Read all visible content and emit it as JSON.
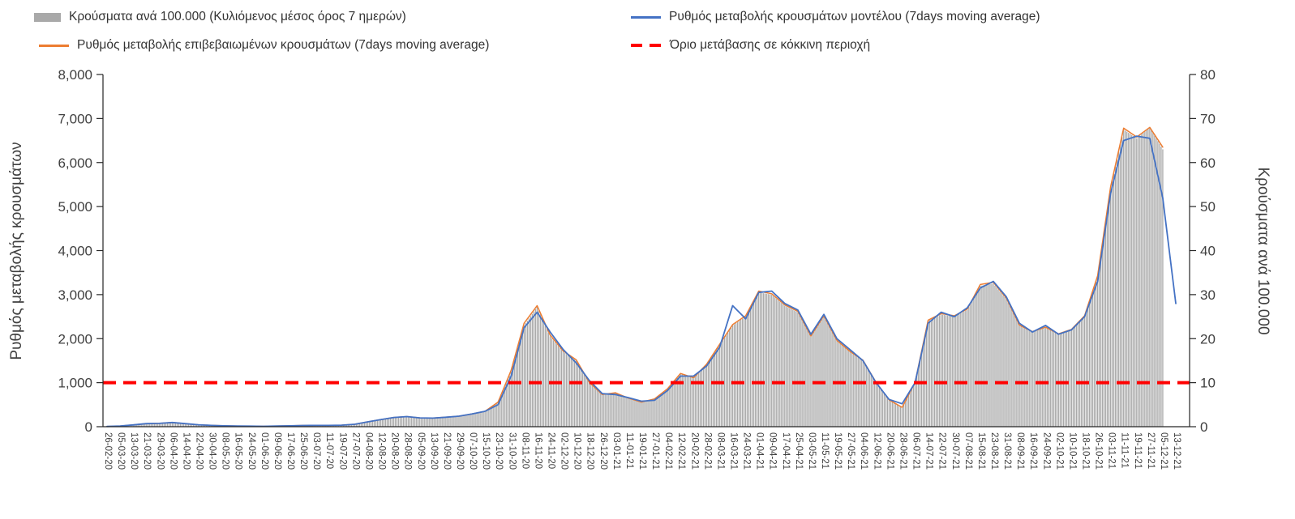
{
  "legend": {
    "items": [
      {
        "label": "Κρούσματα ανά 100.000 (Κυλιόμενος μέσος όρος 7 ημερών)",
        "type": "bar",
        "color": "#a9a9a9"
      },
      {
        "label": "Ρυθμός μεταβολής κρουσμάτων μοντέλου (7days moving average)",
        "type": "line",
        "color": "#4472c4"
      },
      {
        "label": "Ρυθμός μεταβολής επιβεβαιωμένων κρουσμάτων (7days moving average)",
        "type": "line",
        "color": "#ed7d31"
      },
      {
        "label": "Όριο μετάβασης σε κόκκινη περιοχή",
        "type": "dashed",
        "color": "#ff0000"
      }
    ]
  },
  "chart_data": {
    "type": "combo-bar-line",
    "title": "",
    "left_axis": {
      "title": "Ρυθμός μεταβολής κρουσμάτων",
      "min": 0,
      "max": 8000,
      "tick_labels": [
        "0",
        "1,000",
        "2,000",
        "3,000",
        "4,000",
        "5,000",
        "6,000",
        "7,000",
        "8,000"
      ]
    },
    "right_axis": {
      "title": "Κρούσματα ανά 100.000",
      "min": 0,
      "max": 80,
      "tick_labels": [
        "0",
        "10",
        "20",
        "30",
        "40",
        "50",
        "60",
        "70",
        "80"
      ]
    },
    "threshold": {
      "label": "Όριο μετάβασης σε κόκκινη περιοχή",
      "value": 1000,
      "right_axis_value": 10,
      "color": "#ff0000"
    },
    "x_labels": [
      "26-02-20",
      "05-03-20",
      "13-03-20",
      "21-03-20",
      "29-03-20",
      "06-04-20",
      "14-04-20",
      "22-04-20",
      "30-04-20",
      "08-05-20",
      "16-05-20",
      "24-05-20",
      "01-06-20",
      "09-06-20",
      "17-06-20",
      "25-06-20",
      "03-07-20",
      "11-07-20",
      "19-07-20",
      "27-07-20",
      "04-08-20",
      "12-08-20",
      "20-08-20",
      "28-08-20",
      "05-09-20",
      "13-09-20",
      "21-09-20",
      "29-09-20",
      "07-10-20",
      "15-10-20",
      "23-10-20",
      "31-10-20",
      "08-11-20",
      "16-11-20",
      "24-11-20",
      "02-12-20",
      "10-12-20",
      "18-12-20",
      "26-12-20",
      "03-01-21",
      "11-01-21",
      "19-01-21",
      "27-01-21",
      "04-02-21",
      "12-02-21",
      "20-02-21",
      "28-02-21",
      "08-03-21",
      "16-03-21",
      "24-03-21",
      "01-04-21",
      "09-04-21",
      "17-04-21",
      "25-04-21",
      "03-05-21",
      "11-05-21",
      "19-05-21",
      "27-05-21",
      "04-06-21",
      "12-06-21",
      "20-06-21",
      "28-06-21",
      "06-07-21",
      "14-07-21",
      "22-07-21",
      "30-07-21",
      "07-08-21",
      "15-08-21",
      "23-08-21",
      "31-08-21",
      "08-09-21",
      "16-09-21",
      "24-09-21",
      "02-10-21",
      "10-10-21",
      "18-10-21",
      "26-10-21",
      "03-11-21",
      "11-11-21",
      "19-11-21",
      "27-11-21",
      "05-12-21",
      "13-12-21"
    ],
    "series": [
      {
        "name": "Κρούσματα ανά 100.000 (Κυλιόμενος μέσος όρος 7 ημερών)",
        "type": "bar",
        "axis": "right",
        "color": "#a9a9a9",
        "values": [
          0.05,
          0.15,
          0.4,
          0.7,
          0.75,
          0.95,
          0.7,
          0.45,
          0.3,
          0.2,
          0.15,
          0.12,
          0.1,
          0.15,
          0.2,
          0.28,
          0.3,
          0.3,
          0.35,
          0.55,
          1.1,
          1.6,
          2.1,
          2.3,
          2.0,
          1.95,
          2.15,
          2.4,
          2.9,
          3.5,
          5.5,
          12.5,
          23,
          27.2,
          20.5,
          17,
          15,
          10,
          7.2,
          7.6,
          6.4,
          5.6,
          6.2,
          8.5,
          12,
          11,
          14,
          18.5,
          23,
          25,
          30.5,
          30,
          27.5,
          26,
          20.5,
          25,
          19.5,
          17,
          15,
          10,
          6,
          4.5,
          10,
          24,
          25.5,
          25,
          26.5,
          32,
          32.5,
          29,
          23,
          21.5,
          22.5,
          21,
          22,
          25,
          34,
          54,
          67.5,
          65.5,
          68,
          63,
          null
        ]
      },
      {
        "name": "Ρυθμός μεταβολής επιβεβαιωμένων κρουσμάτων (7days moving average)",
        "type": "line",
        "axis": "left",
        "color": "#ed7d31",
        "width": 1.5,
        "values": [
          5,
          15,
          40,
          70,
          75,
          95,
          70,
          45,
          30,
          20,
          15,
          12,
          10,
          15,
          20,
          28,
          30,
          30,
          35,
          55,
          110,
          160,
          210,
          230,
          200,
          195,
          215,
          240,
          290,
          350,
          560,
          1280,
          2350,
          2750,
          2080,
          1720,
          1520,
          1010,
          730,
          770,
          650,
          560,
          630,
          860,
          1210,
          1110,
          1420,
          1870,
          2320,
          2520,
          3080,
          3020,
          2770,
          2620,
          2060,
          2520,
          1960,
          1710,
          1510,
          1010,
          610,
          440,
          1010,
          2420,
          2570,
          2520,
          2670,
          3230,
          3280,
          2920,
          2310,
          2160,
          2260,
          2110,
          2210,
          2520,
          3430,
          5450,
          6780,
          6580,
          6800,
          6350,
          null
        ]
      },
      {
        "name": "Ρυθμός μεταβολής κρουσμάτων μοντέλου (7days moving average)",
        "type": "line",
        "axis": "left",
        "color": "#4472c4",
        "width": 1.8,
        "values": [
          5,
          15,
          40,
          70,
          75,
          95,
          70,
          45,
          30,
          20,
          15,
          12,
          10,
          15,
          20,
          28,
          30,
          30,
          35,
          55,
          110,
          160,
          210,
          230,
          200,
          195,
          215,
          240,
          290,
          350,
          500,
          1150,
          2250,
          2600,
          2150,
          1750,
          1450,
          1050,
          750,
          730,
          660,
          580,
          600,
          820,
          1150,
          1150,
          1380,
          1800,
          2750,
          2450,
          3050,
          3080,
          2800,
          2650,
          2100,
          2550,
          2000,
          1750,
          1500,
          1000,
          620,
          520,
          1000,
          2350,
          2600,
          2500,
          2700,
          3150,
          3300,
          2950,
          2350,
          2150,
          2300,
          2100,
          2200,
          2500,
          3300,
          5300,
          6500,
          6600,
          6550,
          5200,
          2800
        ]
      }
    ]
  }
}
